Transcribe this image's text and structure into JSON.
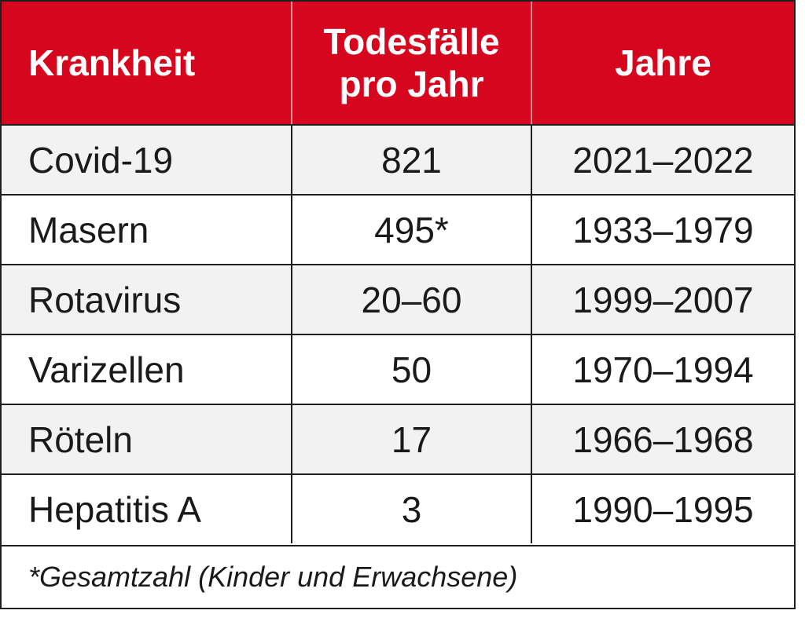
{
  "header": {
    "col1": "Krankheit",
    "col2_line1": "Todesfälle",
    "col2_line2": "pro Jahr",
    "col3": "Jahre"
  },
  "rows": [
    {
      "disease": "Covid-19",
      "deaths": "821",
      "years": "2021–2022"
    },
    {
      "disease": "Masern",
      "deaths": "495*",
      "years": "1933–1979"
    },
    {
      "disease": "Rotavirus",
      "deaths": "20–60",
      "years": "1999–2007"
    },
    {
      "disease": "Varizellen",
      "deaths": "50",
      "years": "1970–1994"
    },
    {
      "disease": "Röteln",
      "deaths": "17",
      "years": "1966–1968"
    },
    {
      "disease": "Hepatitis A",
      "deaths": "3",
      "years": "1990–1995"
    }
  ],
  "footnote": "*Gesamtzahl (Kinder und Erwachsene)",
  "colors": {
    "header_bg": "#d6061e",
    "header_text": "#ffffff",
    "row_alt_bg": "#f2f2f2",
    "border": "#1e1e1e"
  }
}
